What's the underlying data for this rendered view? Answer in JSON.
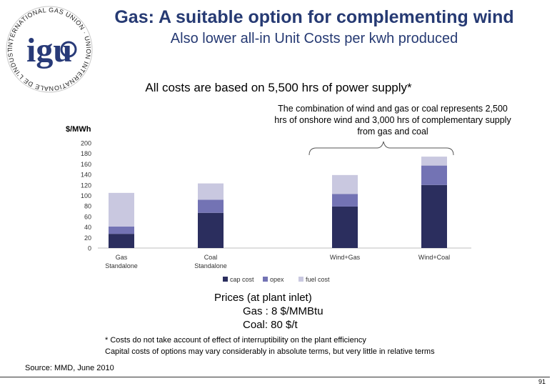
{
  "slide": {
    "title": "Gas: A suitable option for complementing wind",
    "subtitle": "Also lower all-in Unit Costs per kwh produced",
    "basis_text": "All costs are based on 5,500 hrs of power supply*",
    "combo_note": "The combination of wind and gas or coal represents 2,500 hrs of onshore wind and 3,000 hrs of complementary supply from gas and coal",
    "prices": {
      "heading": "Prices (at plant inlet)",
      "gas": "Gas :   8 $/MMBtu",
      "coal": "Coal: 80 $/t"
    },
    "footnote_1": "* Costs do not take account of effect of interruptibility on the plant efficiency",
    "footnote_2": "Capital costs of options may vary considerably in absolute terms, but very little in relative terms",
    "source": "Source: MMD, June 2010",
    "page_number": "91",
    "logo": {
      "text": "INTERNATIONAL GAS UNION · UNION INTERNATIONALE DE L'INDUSTRIE DU GAZ",
      "mark": "igu"
    }
  },
  "chart_data": {
    "type": "bar",
    "stacked": true,
    "ylabel": "$/MWh",
    "ylim": [
      0,
      200
    ],
    "yticks": [
      0,
      20,
      40,
      60,
      80,
      100,
      120,
      140,
      160,
      180,
      200
    ],
    "categories": [
      "Gas\nStandalone",
      "Coal\nStandalone",
      "Wind+Gas",
      "Wind+Coal"
    ],
    "series": [
      {
        "name": "cap cost",
        "color": "#2b2e5e",
        "values": [
          27,
          67,
          79,
          120
        ]
      },
      {
        "name": "opex",
        "color": "#7373b4",
        "values": [
          14,
          25,
          24,
          37
        ]
      },
      {
        "name": "fuel cost",
        "color": "#c9c8e0",
        "values": [
          64,
          31,
          36,
          17
        ]
      }
    ],
    "grid": false,
    "legend_position": "bottom"
  }
}
